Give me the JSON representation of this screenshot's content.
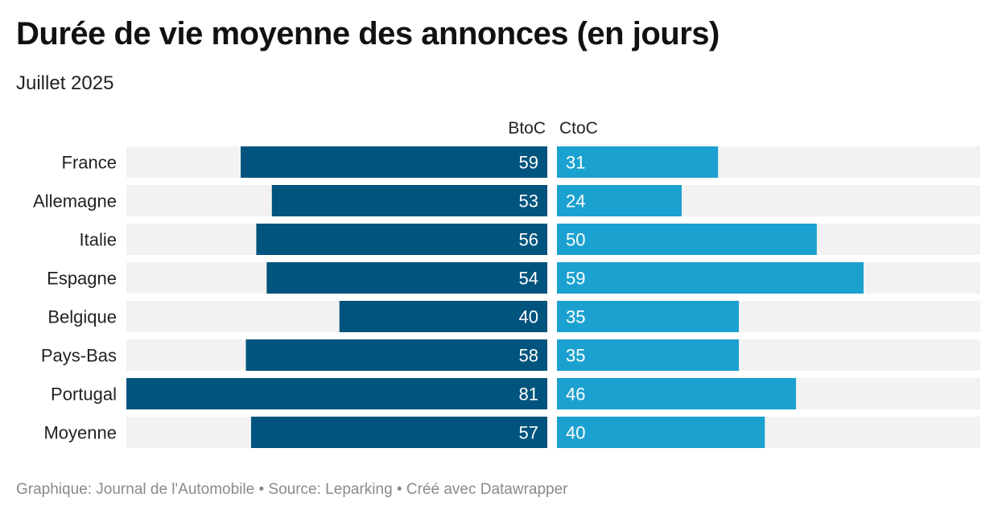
{
  "title": "Durée de vie moyenne des annonces (en jours)",
  "subtitle": "Juillet 2025",
  "footer": {
    "graphic": "Graphique: Journal de l'Automobile",
    "source": "Source: Leparking",
    "created": "Créé avec Datawrapper",
    "separator": "•"
  },
  "colors": {
    "btoc": "#00547d",
    "ctoc": "#1ba1cf",
    "track": "#f2f2f2",
    "label": "#222222",
    "value_text": "#ffffff"
  },
  "chart_data": {
    "type": "bar",
    "orientation": "horizontal-diverging",
    "categories": [
      "France",
      "Allemagne",
      "Italie",
      "Espagne",
      "Belgique",
      "Pays-Bas",
      "Portugal",
      "Moyenne"
    ],
    "series": [
      {
        "name": "BtoC",
        "values": [
          59,
          53,
          56,
          54,
          40,
          58,
          81,
          57
        ]
      },
      {
        "name": "CtoC",
        "values": [
          31,
          24,
          50,
          59,
          35,
          35,
          46,
          40
        ]
      }
    ],
    "xlim": [
      0,
      81
    ],
    "data_labels": true,
    "grid": false,
    "legend": "column headers above bars"
  }
}
